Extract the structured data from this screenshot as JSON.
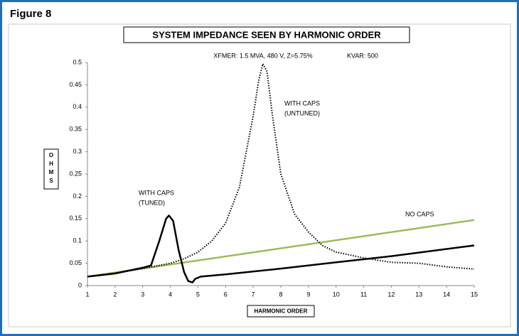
{
  "figure_label": "Figure 8",
  "chart_data": {
    "type": "line",
    "title": "SYSTEM IMPEDANCE SEEN BY HARMONIC ORDER",
    "subtitle": "XFMER: 1.5 MVA, 480 V, Z=5.75%",
    "subtitle2": "KVAR: 500",
    "xlabel": "HARMONIC ORDER",
    "ylabel": "OHMS",
    "xlim": [
      1,
      15
    ],
    "xticks": [
      1,
      2,
      3,
      4,
      5,
      6,
      7,
      8,
      9,
      10,
      11,
      12,
      13,
      14,
      15
    ],
    "ylim": [
      0,
      0.5
    ],
    "yticks": [
      0,
      0.05,
      0.1,
      0.15,
      0.2,
      0.25,
      0.3,
      0.35,
      0.4,
      0.45,
      0.5
    ],
    "grid": false,
    "series": [
      {
        "name": "NO CAPS",
        "color": "#9bbb59",
        "style": "solid",
        "x": [
          1,
          15
        ],
        "values": [
          0.02,
          0.147
        ]
      },
      {
        "name": "WITH CAPS (UNTUNED)",
        "color": "#000000",
        "style": "dotted",
        "x": [
          1,
          2,
          3,
          4,
          4.5,
          5,
          5.5,
          6,
          6.5,
          7,
          7.2,
          7.35,
          7.5,
          7.7,
          8,
          8.5,
          9,
          9.5,
          10,
          11,
          12,
          13,
          14,
          15
        ],
        "values": [
          0.02,
          0.028,
          0.038,
          0.05,
          0.06,
          0.075,
          0.1,
          0.14,
          0.22,
          0.38,
          0.46,
          0.497,
          0.48,
          0.38,
          0.25,
          0.16,
          0.12,
          0.09,
          0.075,
          0.062,
          0.052,
          0.05,
          0.042,
          0.037
        ]
      },
      {
        "name": "WITH CAPS (TUNED)",
        "color": "#000000",
        "style": "solid",
        "x": [
          1,
          2,
          3,
          3.3,
          3.6,
          3.85,
          3.95,
          4.1,
          4.3,
          4.5,
          4.65,
          4.8,
          4.9,
          5.1,
          6,
          8,
          10,
          12,
          15
        ],
        "values": [
          0.02,
          0.027,
          0.04,
          0.045,
          0.1,
          0.15,
          0.157,
          0.145,
          0.08,
          0.03,
          0.01,
          0.007,
          0.015,
          0.02,
          0.025,
          0.038,
          0.052,
          0.066,
          0.09
        ]
      }
    ],
    "annotations": [
      {
        "lines": [
          "WITH CAPS",
          "(UNTUNED)"
        ]
      },
      {
        "lines": [
          "WITH CAPS",
          "(TUNED)"
        ]
      },
      {
        "lines": [
          "NO CAPS"
        ]
      }
    ]
  }
}
